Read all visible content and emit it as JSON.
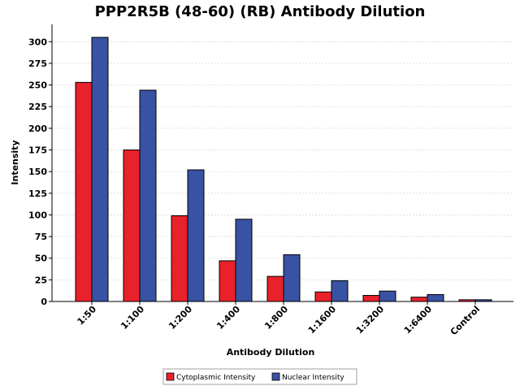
{
  "chart_data": {
    "type": "bar",
    "title": "PPP2R5B (48-60) (RB) Antibody Dilution",
    "xlabel": "Antibody Dilution",
    "ylabel": "Intensity",
    "categories": [
      "1:50",
      "1:100",
      "1:200",
      "1:400",
      "1:800",
      "1:1600",
      "1:3200",
      "1:6400",
      "Control"
    ],
    "series": [
      {
        "name": "Cytoplasmic Intensity",
        "color": "#e8212b",
        "values": [
          253,
          175,
          99,
          47,
          29,
          11,
          7,
          5,
          2
        ]
      },
      {
        "name": "Nuclear Intensity",
        "color": "#3852a4",
        "values": [
          305,
          244,
          152,
          95,
          54,
          24,
          12,
          8,
          2
        ]
      }
    ],
    "yticks": [
      0,
      25,
      50,
      75,
      100,
      125,
      150,
      175,
      200,
      225,
      250,
      275,
      300
    ],
    "ylim": [
      0,
      320
    ],
    "grid": true,
    "legend_position": "bottom"
  }
}
